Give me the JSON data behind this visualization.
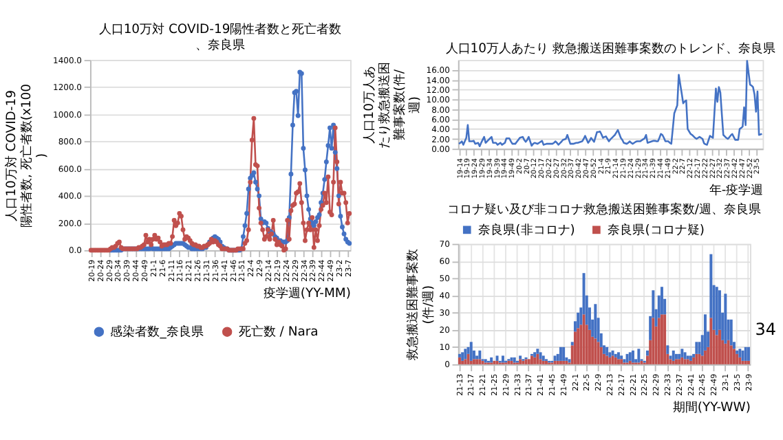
{
  "chart_data": [
    {
      "type": "line",
      "title": "人口10万対 COVID-19陽性者数と死亡者数、奈良県",
      "xlabel": "疫学週(YY-MM)",
      "ylabel": "人口10万対 COVID-19陽性者数, 死亡者数(x100)",
      "categories": [
        "20-19",
        null,
        null,
        null,
        null,
        "20-24",
        null,
        null,
        null,
        null,
        "20-29",
        null,
        null,
        null,
        null,
        "20-34",
        null,
        null,
        null,
        null,
        "20-39",
        null,
        null,
        null,
        null,
        "20-44",
        null,
        null,
        null,
        null,
        "20-49",
        null,
        null,
        null,
        null,
        "21-1",
        null,
        null,
        null,
        null,
        "21-6",
        null,
        null,
        null,
        null,
        "21-11",
        null,
        null,
        null,
        null,
        "21-16",
        null,
        null,
        null,
        null,
        "21-21",
        null,
        null,
        null,
        null,
        "21-26",
        null,
        null,
        null,
        null,
        "21-31",
        null,
        null,
        null,
        null,
        "21-36",
        null,
        null,
        null,
        null,
        "21-41",
        null,
        null,
        null,
        null,
        "21-46",
        null,
        null,
        null,
        null,
        "21-51",
        null,
        null,
        null,
        null,
        "22-4",
        null,
        null,
        null,
        null,
        "22-9",
        null,
        null,
        null,
        null,
        "22-14",
        null,
        null,
        null,
        null,
        "22-19",
        null,
        null,
        null,
        null,
        "22-24",
        null,
        null,
        null,
        null,
        "22-29",
        null,
        null,
        null,
        null,
        "22-34",
        null,
        null,
        null,
        null,
        "22-39",
        null,
        null,
        null,
        null,
        "22-44",
        null,
        null,
        null,
        null,
        "22-49",
        null,
        null,
        null,
        null,
        "23-2",
        null,
        null,
        null,
        null,
        "23-7",
        null
      ],
      "ylim": [
        0,
        1400
      ],
      "yticks": [
        {
          "value": 0,
          "label": "0.0"
        },
        {
          "value": 200,
          "label": "200.0"
        },
        {
          "value": 400,
          "label": "400.0"
        },
        {
          "value": 600,
          "label": "600.0"
        },
        {
          "value": 800,
          "label": "800.0"
        },
        {
          "value": 1000,
          "label": "1000.0"
        },
        {
          "value": 1200,
          "label": "1200.0"
        },
        {
          "value": 1400,
          "label": "1400.0"
        }
      ],
      "grid": "y",
      "legend": "bottom",
      "marker": "circle",
      "series": [
        {
          "name": "感染者数_奈良県",
          "color": "#4472c4",
          "values": [
            null,
            null,
            null,
            null,
            null,
            null,
            null,
            null,
            null,
            null,
            null,
            0,
            0,
            0,
            0,
            0,
            0,
            0,
            10,
            10,
            10,
            10,
            10,
            10,
            10,
            10,
            10,
            10,
            10,
            10,
            10,
            10,
            10,
            10,
            20,
            10,
            10,
            10,
            10,
            10,
            10,
            10,
            10,
            10,
            10,
            20,
            30,
            40,
            50,
            50,
            50,
            50,
            50,
            40,
            30,
            20,
            20,
            10,
            10,
            10,
            10,
            10,
            10,
            10,
            20,
            20,
            40,
            60,
            70,
            90,
            100,
            90,
            80,
            60,
            30,
            20,
            10,
            10,
            0,
            0,
            0,
            0,
            0,
            0,
            0,
            10,
            100,
            180,
            270,
            450,
            530,
            550,
            570,
            500,
            450,
            400,
            230,
            200,
            210,
            200,
            160,
            140,
            130,
            120,
            100,
            90,
            70,
            70,
            60,
            60,
            60,
            70,
            240,
            560,
            920,
            1160,
            1170,
            990,
            1310,
            1300,
            750,
            590,
            400,
            300,
            230,
            200,
            180,
            210,
            240,
            260,
            350,
            420,
            520,
            650,
            770,
            900,
            750,
            920,
            720,
            600,
            400,
            250,
            170,
            120,
            80,
            60,
            50
          ]
        },
        {
          "name": "死亡数 / Nara",
          "color": "#c0504d",
          "values": [
            0,
            0,
            0,
            0,
            0,
            0,
            0,
            0,
            0,
            0,
            0,
            10,
            20,
            20,
            30,
            50,
            60,
            20,
            10,
            10,
            10,
            10,
            10,
            10,
            10,
            10,
            10,
            20,
            20,
            30,
            40,
            110,
            60,
            80,
            40,
            80,
            110,
            80,
            90,
            60,
            30,
            40,
            40,
            40,
            50,
            50,
            100,
            220,
            180,
            200,
            270,
            250,
            150,
            80,
            100,
            90,
            70,
            50,
            40,
            40,
            30,
            30,
            20,
            20,
            30,
            30,
            40,
            50,
            80,
            60,
            70,
            60,
            40,
            30,
            10,
            10,
            10,
            10,
            0,
            0,
            0,
            0,
            0,
            10,
            10,
            10,
            10,
            50,
            70,
            150,
            500,
            810,
            970,
            630,
            620,
            310,
            200,
            150,
            80,
            100,
            150,
            80,
            120,
            220,
            80,
            40,
            60,
            40,
            30,
            0,
            10,
            220,
            80,
            290,
            330,
            340,
            420,
            430,
            490,
            350,
            200,
            70,
            150,
            200,
            150,
            240,
            20,
            150,
            70,
            180,
            300,
            330,
            420,
            350,
            540,
            280,
            260,
            500,
            900,
            650,
            340,
            500,
            420,
            420,
            350,
            200,
            270
          ]
        }
      ]
    },
    {
      "type": "line",
      "title": "人口10万人あたり 救急搬送困難事案数のトレンド、奈良県",
      "xlabel": "年-疫学週",
      "ylabel": "人口10万人あたり救急搬送困難事案数(件/週)",
      "categories": [
        "19-14",
        null,
        null,
        null,
        null,
        "19-19",
        null,
        null,
        null,
        null,
        "19-24",
        null,
        null,
        null,
        null,
        "19-29",
        null,
        null,
        null,
        null,
        "19-34",
        null,
        null,
        null,
        null,
        "19-39",
        null,
        null,
        null,
        null,
        "19-44",
        null,
        null,
        null,
        null,
        "19-49",
        null,
        null,
        null,
        null,
        "20-2",
        null,
        null,
        null,
        null,
        "20-7",
        null,
        null,
        null,
        null,
        "20-12",
        null,
        null,
        null,
        null,
        "20-17",
        null,
        null,
        null,
        null,
        "20-22",
        null,
        null,
        null,
        null,
        "20-27",
        null,
        null,
        null,
        null,
        "20-32",
        null,
        null,
        null,
        null,
        "20-37",
        null,
        null,
        null,
        null,
        "20-42",
        null,
        null,
        null,
        null,
        "20-47",
        null,
        null,
        null,
        null,
        "20-52",
        null,
        null,
        null,
        null,
        "21-4",
        null,
        null,
        null,
        null,
        "21-9",
        null,
        null,
        null,
        null,
        "21-14",
        null,
        null,
        null,
        null,
        "21-19",
        null,
        null,
        null,
        null,
        "21-24",
        null,
        null,
        null,
        null,
        "21-29",
        null,
        null,
        null,
        null,
        "21-34",
        null,
        null,
        null,
        null,
        "21-39",
        null,
        null,
        null,
        null,
        "21-44",
        null,
        null,
        null,
        null,
        "21-49",
        null,
        null,
        null,
        null,
        "22-2",
        null,
        null,
        null,
        null,
        "22-7",
        null,
        null,
        null,
        null,
        "22-12",
        null,
        null,
        null,
        null,
        "22-17",
        null,
        null,
        null,
        null,
        "22-22",
        null,
        null,
        null,
        null,
        "22-27",
        null,
        null,
        null,
        null,
        "22-32",
        null,
        null,
        null,
        null,
        "22-37",
        null,
        null,
        null,
        null,
        "22-42",
        null,
        null,
        null,
        null,
        "22-47",
        null,
        null,
        null,
        null,
        "22-52",
        null,
        null,
        null,
        null,
        "23-5",
        null,
        null,
        null,
        null
      ],
      "ylim": [
        0,
        18
      ],
      "yticks": [
        {
          "value": 0,
          "label": "0.00"
        },
        {
          "value": 2,
          "label": "2.00"
        },
        {
          "value": 4,
          "label": "4.00"
        },
        {
          "value": 6,
          "label": "6.00"
        },
        {
          "value": 8,
          "label": "8.00"
        },
        {
          "value": 10,
          "label": "10.00"
        },
        {
          "value": 12,
          "label": "12.00"
        },
        {
          "value": 14,
          "label": "14.00"
        },
        {
          "value": 16,
          "label": "16.00"
        }
      ],
      "grid": "y",
      "series": [
        {
          "color": "#4472c4",
          "values": [
            1.0,
            1.2,
            1.5,
            0.8,
            1.5,
            2.2,
            4.8,
            1.5,
            1.5,
            1.5,
            1.6,
            1.0,
            1.1,
            1.2,
            0.5,
            1.2,
            1.8,
            2.4,
            1.2,
            1.5,
            1.8,
            2.1,
            2.4,
            1.2,
            1.2,
            1.2,
            0.8,
            1.0,
            1.2,
            0.8,
            1.0,
            1.2,
            2.1,
            2.1,
            2.1,
            1.5,
            1.0,
            1.0,
            1.0,
            1.4,
            1.8,
            2.2,
            2.3,
            2.4,
            1.8,
            1.4,
            1.8,
            2.4,
            1.5,
            0.6,
            1.0,
            1.2,
            1.1,
            1.0,
            1.2,
            1.4,
            1.6,
            0.8,
            0.9,
            1.0,
            1.0,
            1.0,
            1.0,
            1.0,
            1.2,
            1.5,
            1.2,
            0.8,
            1.1,
            1.4,
            1.8,
            1.9,
            2.0,
            2.8,
            1.9,
            1.0,
            1.0,
            1.0,
            1.1,
            1.2,
            1.2,
            1.3,
            1.4,
            1.5,
            2.0,
            2.6,
            1.9,
            1.2,
            1.6,
            2.2,
            1.8,
            1.4,
            2.4,
            3.4,
            3.4,
            3.5,
            2.9,
            2.2,
            2.4,
            2.5,
            2.0,
            1.5,
            1.9,
            2.2,
            2.5,
            2.8,
            3.3,
            3.8,
            3.0,
            2.2,
            1.8,
            1.2,
            1.1,
            1.0,
            1.2,
            1.5,
            1.2,
            1.0,
            1.2,
            1.4,
            1.5,
            1.5,
            1.5,
            1.7,
            1.9,
            2.1,
            2.8,
            1.2,
            1.3,
            1.4,
            1.5,
            1.6,
            1.6,
            1.5,
            1.5,
            2.2,
            3.0,
            2.8,
            2.2,
            1.5,
            1.5,
            1.5,
            1.2,
            1.0,
            4.1,
            7.2,
            8.0,
            8.8,
            15.0,
            13.1,
            11.2,
            9.2,
            9.6,
            9.8,
            4.0,
            3.5,
            3.0,
            2.8,
            2.5,
            2.2,
            2.0,
            2.2,
            2.4,
            2.2,
            2.0,
            1.1,
            0.9,
            0.8,
            1.7,
            2.6,
            2.4,
            2.2,
            7.2,
            12.2,
            9.5,
            12.5,
            11.4,
            7.0,
            2.8,
            2.5,
            2.2,
            2.0,
            2.3,
            2.7,
            3.0,
            2.4,
            1.8,
            1.8,
            1.8,
            4.0,
            4.2,
            4.5,
            8.4,
            4.8,
            17.8,
            15.4,
            13.0,
            12.8,
            12.5,
            11.0,
            7.5,
            11.6,
            2.8,
            2.9,
            3.0
          ]
        }
      ]
    },
    {
      "type": "bar",
      "title": "コロナ疑い及び非コロナ救急搬送困難事案数/週、奈良県",
      "xlabel": "期間(YY-WW)",
      "ylabel": "救急搬送困難事案数(件/週)",
      "categories": [
        "21-13",
        null,
        null,
        null,
        "21-17",
        null,
        null,
        null,
        "21-21",
        null,
        null,
        null,
        "21-25",
        null,
        null,
        null,
        "21-29",
        null,
        null,
        null,
        "21-33",
        null,
        null,
        null,
        "21-37",
        null,
        null,
        null,
        "21-41",
        null,
        null,
        null,
        "21-45",
        null,
        null,
        null,
        "21-49",
        null,
        null,
        null,
        "22-1",
        null,
        null,
        null,
        "22-5",
        null,
        null,
        null,
        "22-9",
        null,
        null,
        null,
        "22-13",
        null,
        null,
        null,
        "22-17",
        null,
        null,
        null,
        "22-21",
        null,
        null,
        null,
        "22-25",
        null,
        null,
        null,
        "22-29",
        null,
        null,
        null,
        "22-33",
        null,
        null,
        null,
        "22-37",
        null,
        null,
        null,
        "22-41",
        null,
        null,
        null,
        "22-45",
        null,
        null,
        null,
        "22-49",
        null,
        null,
        null,
        "23-1",
        null,
        null,
        null,
        "23-5",
        null,
        null,
        null,
        "23-9"
      ],
      "ylim": [
        0,
        70
      ],
      "yticks": [
        0,
        10,
        20,
        30,
        40,
        50,
        60,
        70
      ],
      "grid": true,
      "stacked": true,
      "legend": "top",
      "annotations": [
        "34"
      ],
      "series": [
        {
          "name": "奈良県(コロナ疑)",
          "color": "#c0504d",
          "values": [
            4,
            2,
            3,
            6,
            2,
            3,
            3,
            3,
            2,
            1,
            1,
            1,
            2,
            2,
            1,
            1,
            1,
            2,
            2,
            1,
            1,
            3,
            2,
            3,
            3,
            5,
            4,
            6,
            3,
            2,
            2,
            1,
            1,
            2,
            2,
            2,
            2,
            2,
            1,
            11,
            19,
            21,
            23,
            29,
            23,
            20,
            16,
            15,
            13,
            10,
            6,
            5,
            4,
            5,
            4,
            3,
            3,
            1,
            1,
            2,
            1,
            1,
            1,
            2,
            1,
            5,
            14,
            27,
            22,
            27,
            29,
            29,
            6,
            3,
            2,
            3,
            3,
            4,
            3,
            3,
            2,
            4,
            6,
            6,
            5,
            8,
            10,
            27,
            20,
            17,
            20,
            14,
            12,
            14,
            11,
            9,
            6,
            4,
            2,
            2,
            2
          ]
        },
        {
          "name": "奈良県(非コロナ)",
          "color": "#4472c4",
          "values": [
            2,
            5,
            6,
            4,
            11,
            5,
            2,
            5,
            1,
            2,
            1,
            3,
            0,
            3,
            1,
            4,
            1,
            1,
            2,
            3,
            1,
            2,
            1,
            1,
            0,
            1,
            3,
            3,
            4,
            3,
            1,
            1,
            1,
            3,
            4,
            8,
            8,
            2,
            2,
            2,
            6,
            9,
            10,
            24,
            17,
            13,
            10,
            20,
            14,
            8,
            5,
            5,
            3,
            3,
            2,
            4,
            2,
            2,
            5,
            5,
            7,
            2,
            8,
            1,
            1,
            3,
            14,
            16,
            10,
            13,
            16,
            9,
            5,
            2,
            6,
            3,
            3,
            5,
            4,
            2,
            3,
            2,
            7,
            7,
            12,
            21,
            9,
            37,
            26,
            28,
            23,
            16,
            29,
            12,
            15,
            4,
            2,
            5,
            6,
            8,
            8
          ]
        }
      ]
    }
  ]
}
